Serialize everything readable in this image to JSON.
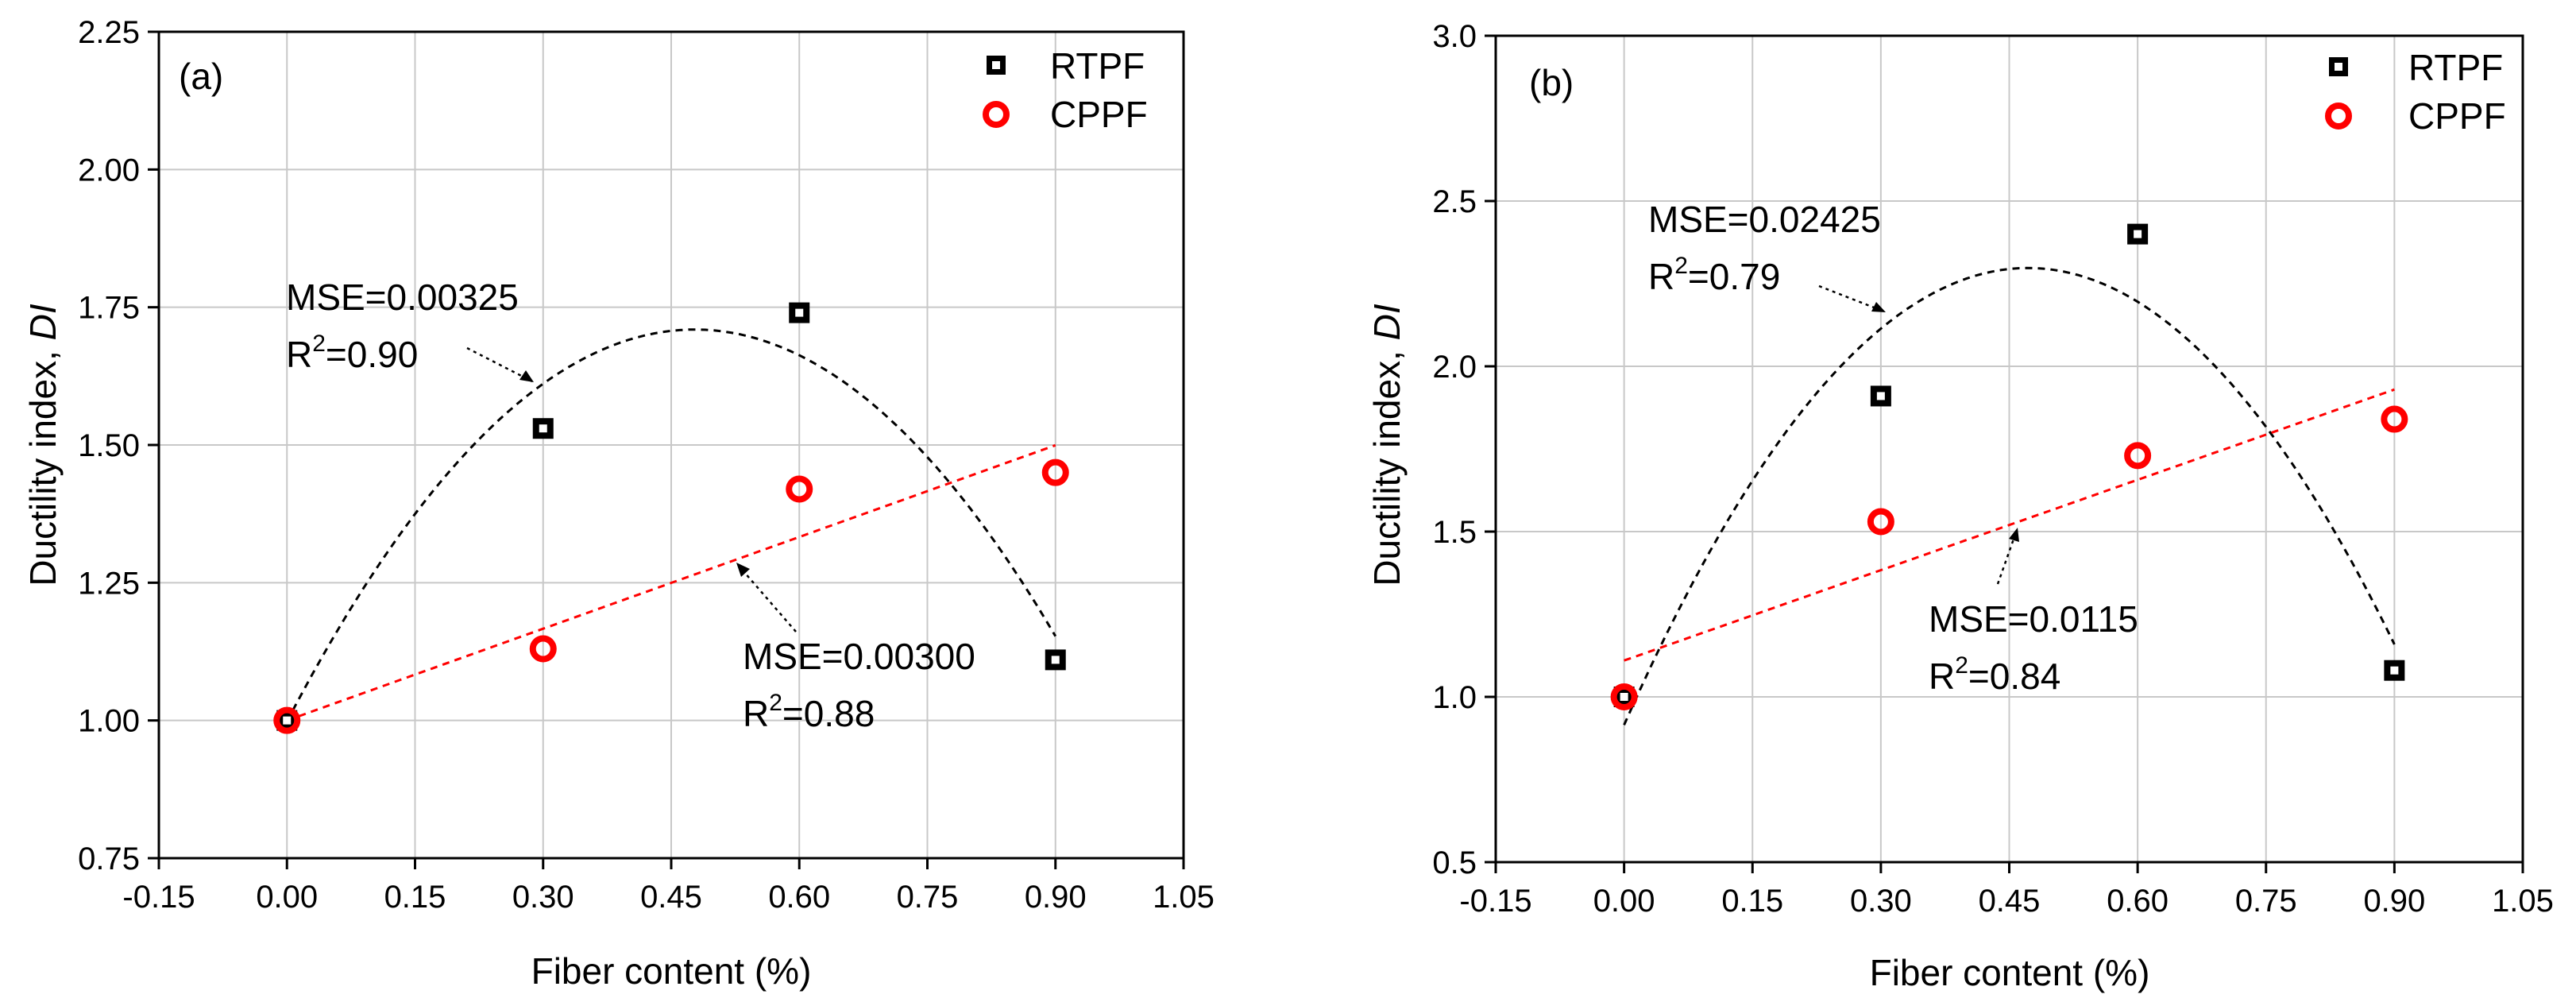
{
  "figure": {
    "series_styles": {
      "RTPF": {
        "marker": "square",
        "color": "#000000"
      },
      "CPPF": {
        "marker": "circle",
        "color": "#ff0000"
      }
    }
  },
  "chart_data": [
    {
      "type": "scatter",
      "panel_label": "(a)",
      "xlabel": "Fiber content (%)",
      "ylabel": "Ductility index, ",
      "ylabel_italic": "DI",
      "xlim": [
        -0.15,
        1.05
      ],
      "ylim": [
        0.75,
        2.25
      ],
      "xticks": [
        -0.15,
        0.0,
        0.15,
        0.3,
        0.45,
        0.6,
        0.75,
        0.9,
        1.05
      ],
      "xtick_labels": [
        "-0.15",
        "0.00",
        "0.15",
        "0.30",
        "0.45",
        "0.60",
        "0.75",
        "0.90",
        "1.05"
      ],
      "yticks": [
        0.75,
        1.0,
        1.25,
        1.5,
        1.75,
        2.0,
        2.25
      ],
      "ytick_labels": [
        "0.75",
        "1.00",
        "1.25",
        "1.50",
        "1.75",
        "2.00",
        "2.25"
      ],
      "grid": true,
      "legend_position": "top-right",
      "series": [
        {
          "name": "RTPF",
          "x": [
            0.0,
            0.3,
            0.6,
            0.9
          ],
          "y": [
            1.0,
            1.53,
            1.74,
            1.11
          ]
        },
        {
          "name": "CPPF",
          "x": [
            0.0,
            0.3,
            0.6,
            0.9
          ],
          "y": [
            1.0,
            1.13,
            1.42,
            1.45
          ]
        }
      ],
      "fits": [
        {
          "series": "RTPF",
          "kind": "quadratic",
          "coefficients": [
            0.998,
            2.98,
            -3.12
          ],
          "x_range": [
            0.0,
            0.9
          ]
        },
        {
          "series": "CPPF",
          "kind": "linear",
          "coefficients": [
            1.0,
            0.555
          ],
          "x_range": [
            0.0,
            0.9
          ]
        }
      ],
      "annotations": [
        {
          "mse": "MSE=0.00325",
          "r_prefix": "R",
          "r_sup": "2",
          "r_value": "=0.90"
        },
        {
          "mse": "MSE=0.00300",
          "r_prefix": "R",
          "r_sup": "2",
          "r_value": "=0.88"
        }
      ]
    },
    {
      "type": "scatter",
      "panel_label": "(b)",
      "xlabel": "Fiber content (%)",
      "ylabel": "Ductility index, ",
      "ylabel_italic": "DI",
      "xlim": [
        -0.15,
        1.05
      ],
      "ylim": [
        0.5,
        3.0
      ],
      "xticks": [
        -0.15,
        0.0,
        0.15,
        0.3,
        0.45,
        0.6,
        0.75,
        0.9,
        1.05
      ],
      "xtick_labels": [
        "-0.15",
        "0.00",
        "0.15",
        "0.30",
        "0.45",
        "0.60",
        "0.75",
        "0.90",
        "1.05"
      ],
      "yticks": [
        0.5,
        1.0,
        1.5,
        2.0,
        2.5,
        3.0
      ],
      "ytick_labels": [
        "0.5",
        "1.0",
        "1.5",
        "2.0",
        "2.5",
        "3.0"
      ],
      "grid": true,
      "legend_position": "top-right",
      "series": [
        {
          "name": "RTPF",
          "x": [
            0.0,
            0.3,
            0.6,
            0.9
          ],
          "y": [
            1.0,
            1.91,
            2.4,
            1.08
          ]
        },
        {
          "name": "CPPF",
          "x": [
            0.0,
            0.3,
            0.6,
            0.9
          ],
          "y": [
            1.0,
            1.53,
            1.73,
            1.84
          ]
        }
      ],
      "fits": [
        {
          "series": "RTPF",
          "kind": "quadratic",
          "coefficients": [
            0.915,
            5.86,
            -6.21
          ],
          "x_range": [
            0.0,
            0.9
          ]
        },
        {
          "series": "CPPF",
          "kind": "linear",
          "coefficients": [
            1.11,
            0.911
          ],
          "x_range": [
            0.0,
            0.9
          ]
        }
      ],
      "annotations": [
        {
          "mse": "MSE=0.02425",
          "r_prefix": "R",
          "r_sup": "2",
          "r_value": "=0.79"
        },
        {
          "mse": "MSE=0.0115",
          "r_prefix": "R",
          "r_sup": "2",
          "r_value": "=0.84"
        }
      ]
    }
  ]
}
